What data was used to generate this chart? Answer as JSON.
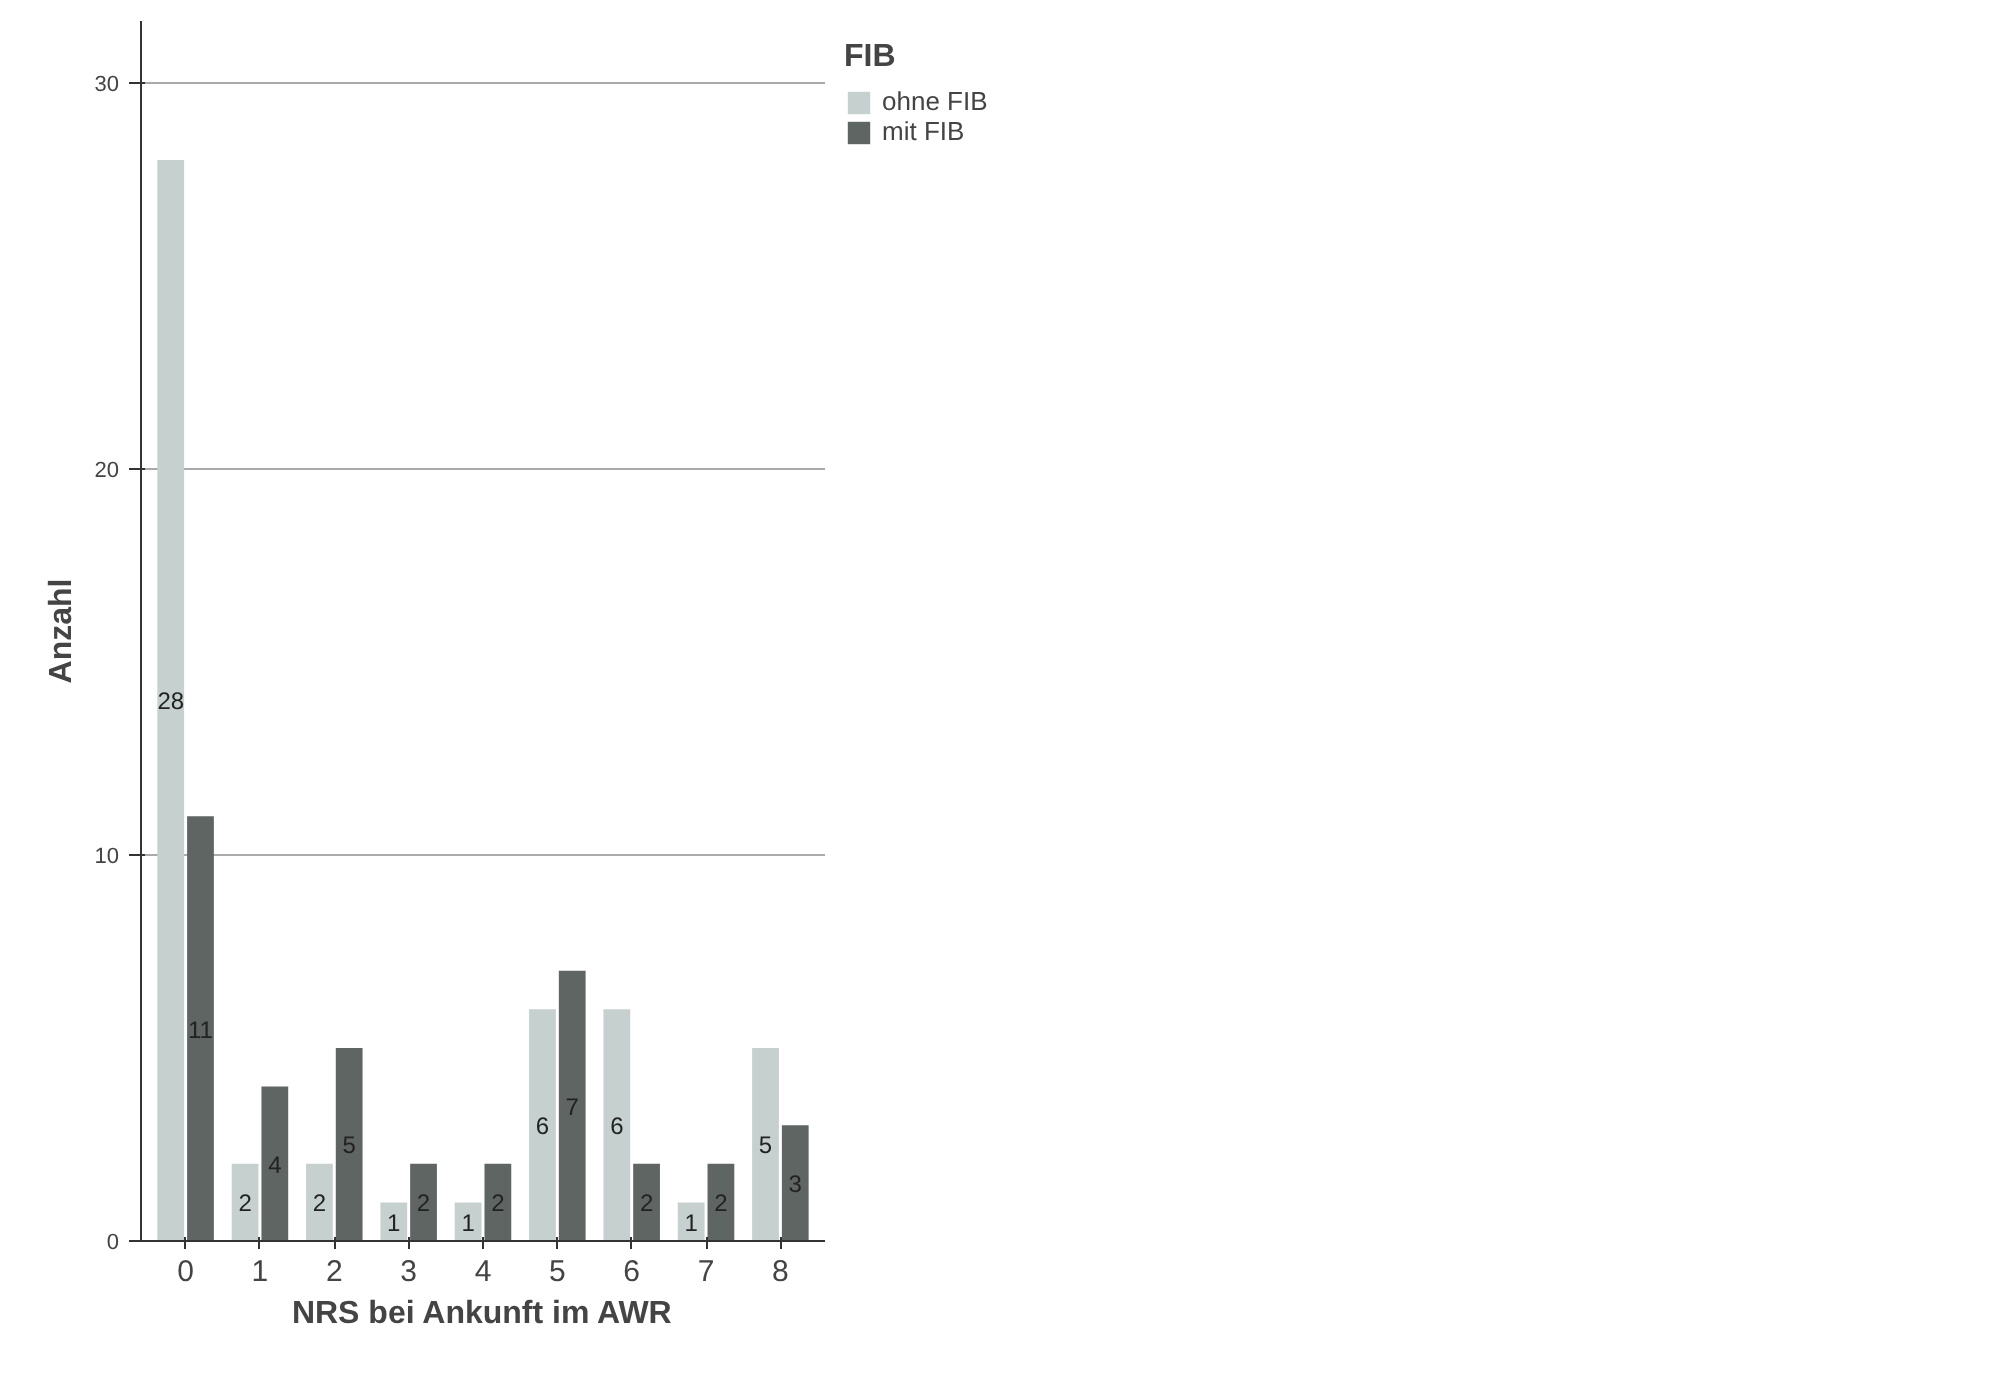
{
  "chart_data": {
    "type": "bar",
    "xlabel": "NRS bei Ankunft im AWR",
    "ylabel": "Anzahl",
    "legend_title": "FIB",
    "categories": [
      "0",
      "1",
      "2",
      "3",
      "4",
      "5",
      "6",
      "7",
      "8"
    ],
    "series": [
      {
        "name": "ohne FIB",
        "color": "#c5d0cf",
        "values": [
          28,
          2,
          2,
          1,
          1,
          6,
          6,
          1,
          5
        ]
      },
      {
        "name": "mit FIB",
        "color": "#5f6562",
        "values": [
          11,
          4,
          5,
          2,
          2,
          7,
          2,
          2,
          3
        ]
      }
    ],
    "ylim": [
      0,
      31.6
    ],
    "yticks": [
      0,
      10,
      20,
      30
    ],
    "grid": "y",
    "legend": "top right",
    "data_labels": true
  }
}
